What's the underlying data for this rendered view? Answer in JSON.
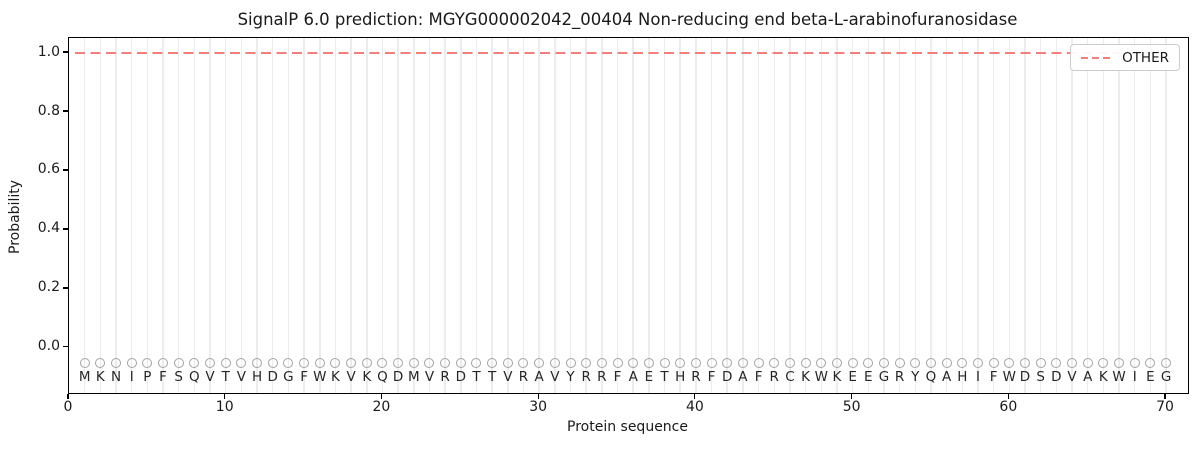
{
  "chart_data": {
    "type": "line",
    "title": "SignalP 6.0 prediction: MGYG000002042_00404 Non-reducing end beta-L-arabinofuranosidase",
    "xlabel": "Protein sequence",
    "ylabel": "Probability",
    "xlim": [
      0,
      71.4
    ],
    "ylim": [
      -0.153,
      1.051
    ],
    "x_ticks": [
      "0",
      "10",
      "20",
      "30",
      "40",
      "50",
      "60",
      "70"
    ],
    "y_ticks": [
      "0.0",
      "0.2",
      "0.4",
      "0.6",
      "0.8",
      "1.0"
    ],
    "grid": {
      "vertical_line_at_each_residue": true,
      "horizontal": false
    },
    "sequence": "MKNIPFSQVTVHDGFWKVKQDMVRDTTVRAVYRRFAETHRFDAFRCKWKEEGRYQAHIFWDSDVAKWIEG",
    "sequence_length": 70,
    "sequence_letter_y": -0.1,
    "markers": {
      "shape": "open-circle",
      "y": -0.05
    },
    "series": [
      {
        "name": "OTHER",
        "style": "dashed",
        "x_start": 0.4,
        "x_end": 70,
        "y_constant": 1.0
      }
    ],
    "legend": {
      "position": "upper-right",
      "entries": [
        {
          "label": "OTHER",
          "style": "dashed"
        }
      ]
    },
    "colors": {
      "line": "#f08080",
      "grid": "#ececec",
      "marker_stroke": "#a3a3a3",
      "letters": "#262626",
      "text": "#1a1a1a",
      "spine": "#000000",
      "legend_border": "#cccccc",
      "background": "#ffffff"
    }
  }
}
